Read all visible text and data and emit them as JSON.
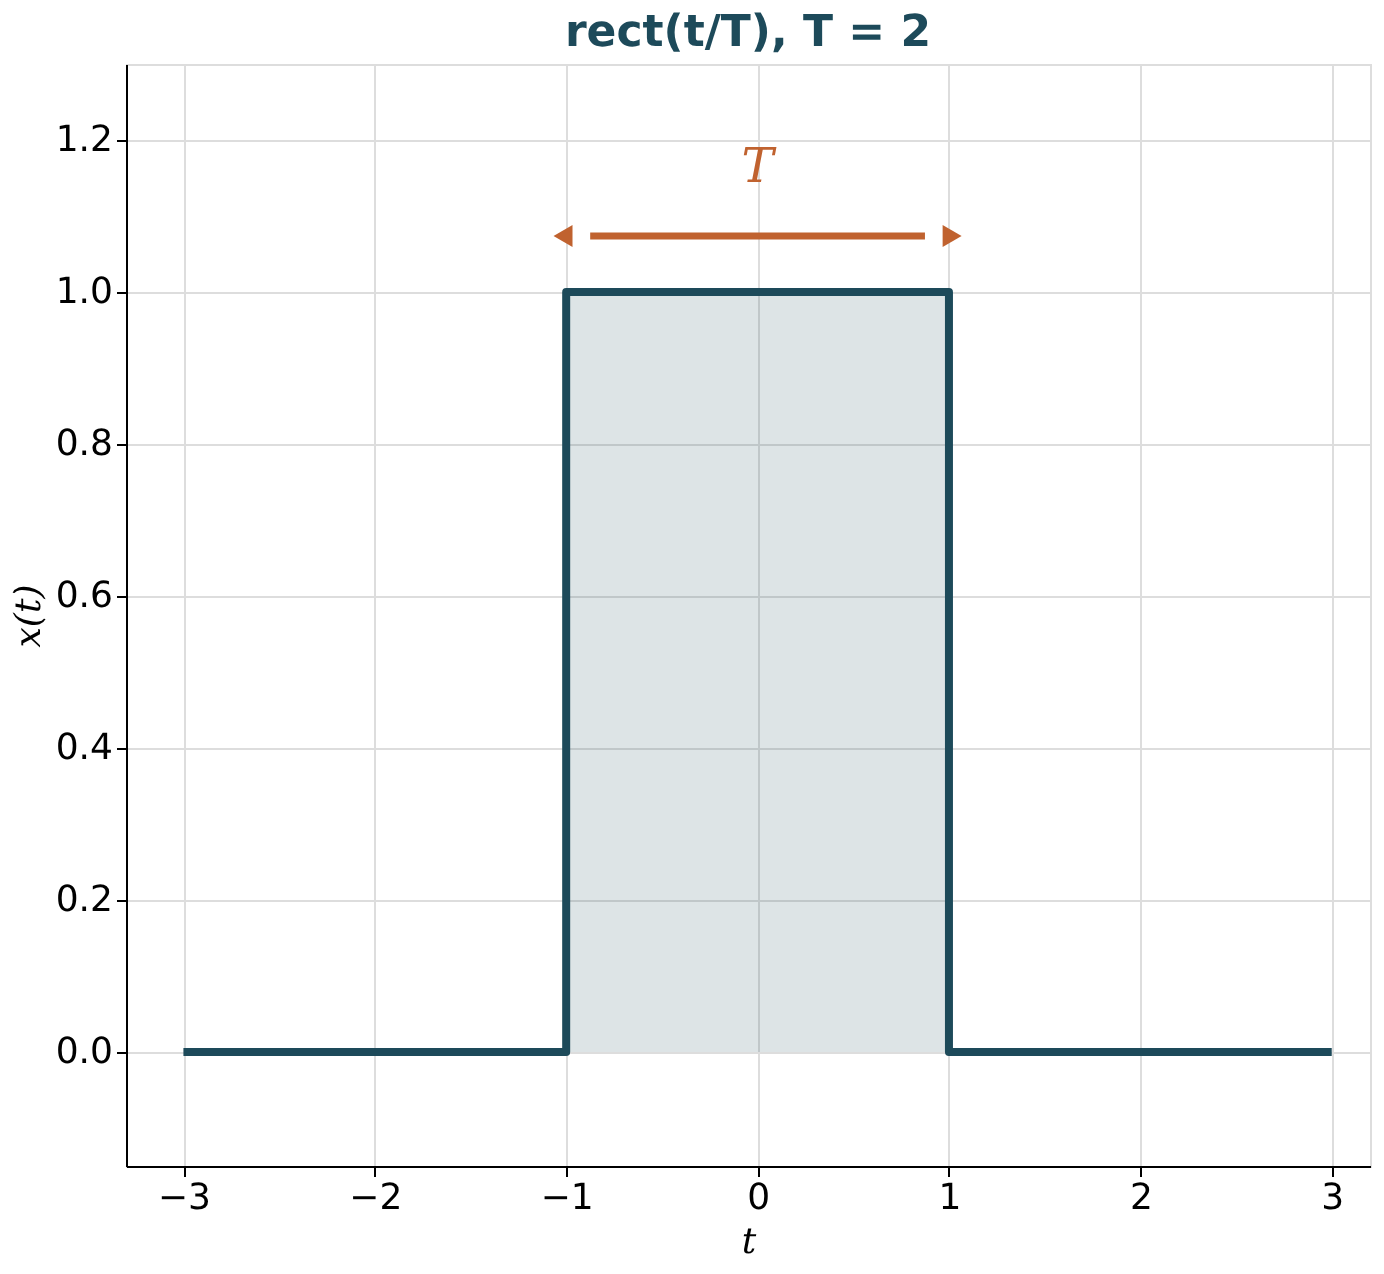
{
  "chart_data": {
    "type": "area",
    "title": "rect(t/T), T = 2",
    "xlabel": "t",
    "ylabel": "x(t)",
    "series": [
      {
        "color": "#1d4a5a",
        "x": [
          -3,
          -1,
          -1,
          1,
          1,
          3
        ],
        "values": [
          0,
          0,
          1,
          1,
          0,
          0
        ]
      }
    ],
    "xlim": [
      -3.3,
      3.2
    ],
    "ylim": [
      -0.15,
      1.3
    ],
    "xticks": [
      {
        "value": -3,
        "label": "−3"
      },
      {
        "value": -2,
        "label": "−2"
      },
      {
        "value": -1,
        "label": "−1"
      },
      0,
      1,
      2,
      3
    ],
    "yticks": [
      {
        "value": 0,
        "label": "0.0"
      },
      {
        "value": 0.2,
        "label": "0.2"
      },
      {
        "value": 0.4,
        "label": "0.4"
      },
      {
        "value": 0.6,
        "label": "0.6"
      },
      {
        "value": 0.8,
        "label": "0.8"
      },
      {
        "value": 1,
        "label": "1.0"
      },
      {
        "value": 1.2,
        "label": "1.2"
      }
    ],
    "grid": true,
    "annotations": [
      "T"
    ]
  }
}
